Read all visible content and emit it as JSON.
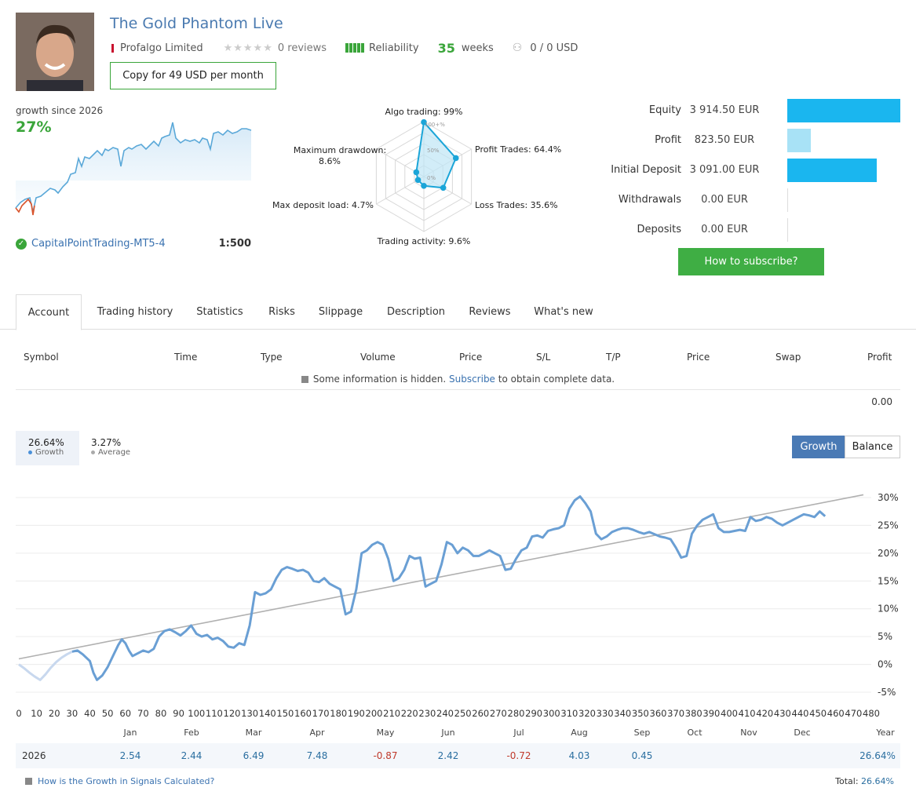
{
  "header": {
    "title": "The Gold Phantom Live",
    "company": "Profalgo Limited",
    "reviews": "0 reviews",
    "reliability": "Reliability",
    "weeks_num": "35",
    "weeks_label": "weeks",
    "subscribers": "0 / 0 USD",
    "copy_button": "Copy for 49 USD per month"
  },
  "summary": {
    "growth_label": "growth since 2026",
    "growth_value": "27%",
    "account": "CapitalPointTrading-MT5-4",
    "leverage": "1:500"
  },
  "radar": {
    "algo": "Algo trading: 99%",
    "profit": "Profit Trades: 64.4%",
    "loss": "Loss Trades: 35.6%",
    "activity": "Trading activity: 9.6%",
    "deposit_load": "Max deposit load: 4.7%",
    "drawdown_1": "Maximum drawdown:",
    "drawdown_2": "8.6%",
    "ring100": "100+%",
    "ring50": "50%",
    "ring0": "0%",
    "values": [
      0.99,
      0.644,
      0.356,
      0.096,
      0.047,
      0.086
    ]
  },
  "equity": {
    "rows": [
      {
        "label": "Equity",
        "value": "3 914.50 EUR",
        "bar": 1.0
      },
      {
        "label": "Profit",
        "value": "823.50 EUR",
        "bar": 0.21
      },
      {
        "label": "Initial Deposit",
        "value": "3 091.00 EUR",
        "bar": 0.79
      },
      {
        "label": "Withdrawals",
        "value": "0.00 EUR",
        "bar": 0
      },
      {
        "label": "Deposits",
        "value": "0.00 EUR",
        "bar": 0
      }
    ],
    "subscribe_button": "How to subscribe?",
    "bar_color": "#1ab6ef",
    "bar_color_light": "#a8e2f6"
  },
  "tabs": [
    "Account",
    "Trading history",
    "Statistics",
    "Risks",
    "Slippage",
    "Description",
    "Reviews",
    "What's new"
  ],
  "table": {
    "headers": [
      "Symbol",
      "Time",
      "Type",
      "Volume",
      "Price",
      "S/L",
      "T/P",
      "Price",
      "Swap",
      "Profit"
    ],
    "hidden_pre": "Some information is hidden.",
    "hidden_link": "Subscribe",
    "hidden_post": "to obtain complete data.",
    "total_profit": "0.00"
  },
  "growth_chart": {
    "growth_value": "26.64%",
    "growth_label": "Growth",
    "average_value": "3.27%",
    "average_label": "Average",
    "btn_growth": "Growth",
    "btn_balance": "Balance",
    "accent": "#4a7ab5"
  },
  "chart_data": {
    "type": "line",
    "x_ticks": [
      "0",
      "10",
      "20",
      "30",
      "40",
      "50",
      "60",
      "70",
      "80",
      "90",
      "100",
      "110",
      "120",
      "130",
      "140",
      "150",
      "160",
      "170",
      "180",
      "190",
      "200",
      "210",
      "220",
      "230",
      "240",
      "250",
      "260",
      "270",
      "280",
      "290",
      "300",
      "310",
      "320",
      "330",
      "340",
      "350",
      "360",
      "370",
      "380",
      "390",
      "400",
      "410",
      "420",
      "430",
      "440",
      "450",
      "460",
      "470",
      "480"
    ],
    "y_ticks": [
      "30%",
      "25%",
      "20%",
      "15%",
      "10%",
      "5%",
      "0%",
      "-5%"
    ],
    "ylim": [
      -5,
      30
    ],
    "xlim": [
      0,
      480
    ],
    "series": [
      {
        "values": [
          [
            0,
            0
          ],
          [
            3,
            -0.7
          ],
          [
            6,
            -1.5
          ],
          [
            9,
            -2.2
          ],
          [
            12,
            -2.8
          ],
          [
            15,
            -1.8
          ],
          [
            18,
            -0.6
          ],
          [
            21,
            0.4
          ],
          [
            24,
            1.2
          ],
          [
            27,
            1.8
          ],
          [
            30,
            2.3
          ],
          [
            33,
            2.5
          ],
          [
            36,
            1.8
          ],
          [
            38,
            1.2
          ],
          [
            40,
            0.6
          ],
          [
            42,
            -1.5
          ],
          [
            44,
            -2.8
          ],
          [
            47,
            -2.0
          ],
          [
            50,
            -0.5
          ],
          [
            53,
            1.5
          ],
          [
            56,
            3.5
          ],
          [
            58,
            4.5
          ],
          [
            60,
            3.8
          ],
          [
            62,
            2.5
          ],
          [
            64,
            1.5
          ],
          [
            67,
            2.0
          ],
          [
            70,
            2.5
          ],
          [
            73,
            2.2
          ],
          [
            76,
            2.8
          ],
          [
            79,
            5.0
          ],
          [
            82,
            6.0
          ],
          [
            85,
            6.3
          ],
          [
            88,
            5.8
          ],
          [
            91,
            5.2
          ],
          [
            94,
            6.0
          ],
          [
            97,
            7.0
          ],
          [
            100,
            5.5
          ],
          [
            103,
            5.0
          ],
          [
            106,
            5.3
          ],
          [
            109,
            4.5
          ],
          [
            112,
            4.8
          ],
          [
            115,
            4.2
          ],
          [
            118,
            3.2
          ],
          [
            121,
            3.0
          ],
          [
            124,
            3.8
          ],
          [
            127,
            3.5
          ],
          [
            130,
            7.0
          ],
          [
            133,
            13.0
          ],
          [
            136,
            12.5
          ],
          [
            139,
            12.8
          ],
          [
            142,
            13.5
          ],
          [
            145,
            15.5
          ],
          [
            148,
            17.0
          ],
          [
            151,
            17.5
          ],
          [
            154,
            17.2
          ],
          [
            157,
            16.8
          ],
          [
            160,
            17.0
          ],
          [
            163,
            16.5
          ],
          [
            166,
            15.0
          ],
          [
            169,
            14.8
          ],
          [
            172,
            15.5
          ],
          [
            175,
            14.5
          ],
          [
            178,
            14.0
          ],
          [
            181,
            13.5
          ],
          [
            184,
            9.0
          ],
          [
            187,
            9.5
          ],
          [
            190,
            13.5
          ],
          [
            193,
            20.0
          ],
          [
            196,
            20.5
          ],
          [
            199,
            21.5
          ],
          [
            202,
            22.0
          ],
          [
            205,
            21.5
          ],
          [
            208,
            19.0
          ],
          [
            211,
            15.0
          ],
          [
            214,
            15.5
          ],
          [
            217,
            17.0
          ],
          [
            220,
            19.5
          ],
          [
            223,
            19.0
          ],
          [
            226,
            19.2
          ],
          [
            229,
            14.0
          ],
          [
            232,
            14.5
          ],
          [
            235,
            15.0
          ],
          [
            238,
            18.0
          ],
          [
            241,
            22.0
          ],
          [
            244,
            21.5
          ],
          [
            247,
            20.0
          ],
          [
            250,
            21.0
          ],
          [
            253,
            20.5
          ],
          [
            256,
            19.5
          ],
          [
            259,
            19.5
          ],
          [
            262,
            20.0
          ],
          [
            265,
            20.5
          ],
          [
            268,
            20.0
          ],
          [
            271,
            19.5
          ],
          [
            274,
            17.0
          ],
          [
            277,
            17.2
          ],
          [
            280,
            19.0
          ],
          [
            283,
            20.5
          ],
          [
            286,
            21.0
          ],
          [
            289,
            23.0
          ],
          [
            292,
            23.2
          ],
          [
            295,
            22.8
          ],
          [
            298,
            24.0
          ],
          [
            301,
            24.3
          ],
          [
            304,
            24.5
          ],
          [
            307,
            25.0
          ],
          [
            310,
            28.0
          ],
          [
            313,
            29.5
          ],
          [
            316,
            30.2
          ],
          [
            319,
            29.0
          ],
          [
            322,
            27.5
          ],
          [
            325,
            23.5
          ],
          [
            328,
            22.5
          ],
          [
            331,
            23.0
          ],
          [
            334,
            23.8
          ],
          [
            337,
            24.2
          ],
          [
            340,
            24.5
          ],
          [
            343,
            24.5
          ],
          [
            346,
            24.2
          ],
          [
            349,
            23.8
          ],
          [
            352,
            23.5
          ],
          [
            355,
            23.8
          ],
          [
            358,
            23.4
          ],
          [
            361,
            23.0
          ],
          [
            364,
            22.8
          ],
          [
            367,
            22.5
          ],
          [
            370,
            21.0
          ],
          [
            373,
            19.2
          ],
          [
            376,
            19.5
          ],
          [
            379,
            23.5
          ],
          [
            382,
            25.0
          ],
          [
            385,
            26.0
          ],
          [
            388,
            26.5
          ],
          [
            391,
            27.0
          ],
          [
            394,
            24.5
          ],
          [
            397,
            23.8
          ],
          [
            400,
            23.8
          ],
          [
            403,
            24.0
          ],
          [
            406,
            24.2
          ],
          [
            409,
            24.0
          ],
          [
            412,
            26.5
          ],
          [
            415,
            25.8
          ],
          [
            418,
            26.0
          ],
          [
            421,
            26.5
          ],
          [
            424,
            26.2
          ],
          [
            427,
            25.5
          ],
          [
            430,
            25.0
          ],
          [
            433,
            25.5
          ],
          [
            436,
            26.0
          ],
          [
            439,
            26.5
          ],
          [
            442,
            27.0
          ],
          [
            445,
            26.8
          ],
          [
            448,
            26.5
          ],
          [
            451,
            27.5
          ],
          [
            454,
            26.64
          ]
        ]
      },
      {
        "values": [
          [
            0,
            1.0
          ],
          [
            480,
            30.5
          ]
        ]
      }
    ]
  },
  "monthly": {
    "months": [
      "Jan",
      "Feb",
      "Mar",
      "Apr",
      "May",
      "Jun",
      "Jul",
      "Aug",
      "Sep",
      "Oct",
      "Nov",
      "Dec",
      "Year"
    ],
    "year": "2026",
    "values": [
      "2.54",
      "2.44",
      "6.49",
      "7.48",
      "-0.87",
      "2.42",
      "-0.72",
      "4.03",
      "0.45",
      "",
      "",
      "",
      "26.64%"
    ],
    "footer_link": "How is the Growth in Signals Calculated?",
    "footer_total_label": "Total:",
    "footer_total_value": "26.64%"
  }
}
